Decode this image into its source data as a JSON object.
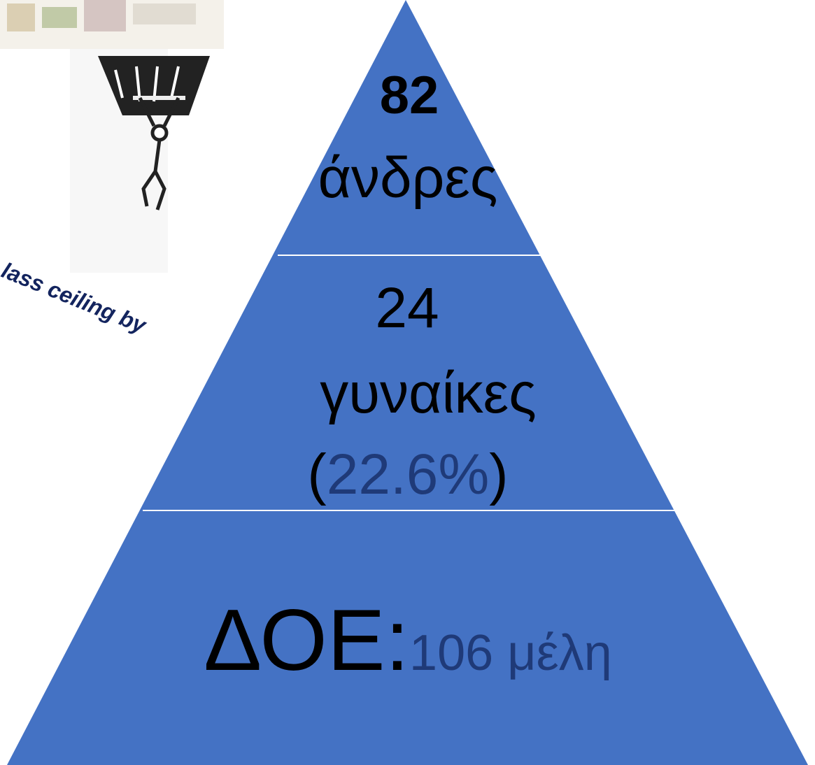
{
  "caption": "lass ceiling by",
  "pyramid": {
    "top": {
      "number": "82",
      "label": "άνδρες"
    },
    "middle": {
      "number": "24",
      "label": "γυναίκες",
      "open": "(",
      "share": "22.6%",
      "close": ")"
    },
    "base": {
      "label": "ΔΟΕ:",
      "members": "106 μέλη"
    }
  }
}
